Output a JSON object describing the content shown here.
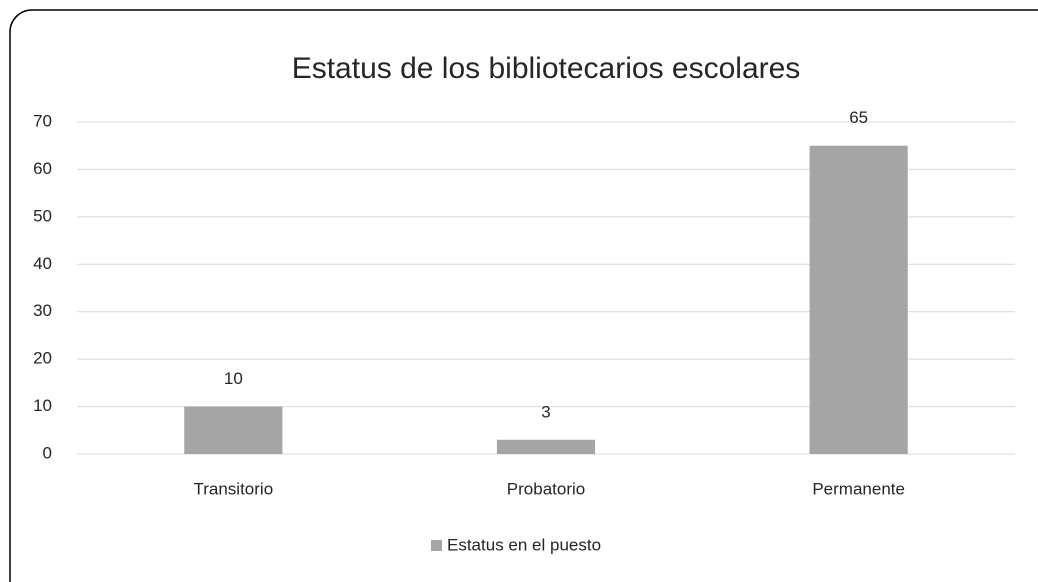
{
  "chart_data": {
    "type": "bar",
    "title": "Estatus de los bibliotecarios escolares",
    "categories": [
      "Transitorio",
      "Probatorio",
      "Permanente"
    ],
    "series": [
      {
        "name": "Estatus en el puesto",
        "color": "#a5a5a5",
        "values": [
          10,
          3,
          65
        ]
      }
    ],
    "ylim": [
      0,
      70
    ],
    "yticks": [
      0,
      10,
      20,
      30,
      40,
      50,
      60,
      70
    ],
    "grid": true,
    "legend": "bottom"
  }
}
